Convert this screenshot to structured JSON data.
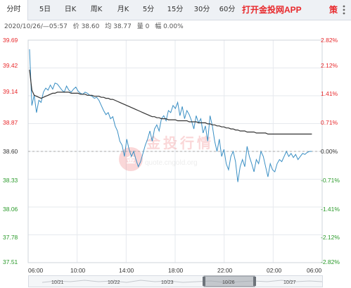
{
  "tabs": [
    {
      "label": "分时",
      "active": true
    },
    {
      "label": "5日"
    },
    {
      "label": "日K"
    },
    {
      "label": "周K"
    },
    {
      "label": "月K"
    },
    {
      "label": "5分"
    },
    {
      "label": "15分"
    },
    {
      "label": "30分"
    },
    {
      "label": "60分"
    }
  ],
  "app_link": "打开金投网APP",
  "strategy_label": "策",
  "info": {
    "datetime": "2020/10/26/—05:57",
    "price": "价 38.60",
    "avg": "均 38.77",
    "volume": "量 0",
    "change": "幅 0.00%"
  },
  "watermark": "quote.cngold.org",
  "colors": {
    "price_line": "#3a8fc4",
    "avg_line": "#333333",
    "up": "#e8282b",
    "down": "#2a9a2a",
    "grid": "#e6e9ee"
  },
  "chart_data": {
    "type": "line",
    "y_ticks_price": [
      "39.69",
      "39.42",
      "39.14",
      "38.87",
      "38.60",
      "38.33",
      "38.06",
      "37.78",
      "37.51"
    ],
    "y_ticks_pct": [
      "2.82%",
      "2.12%",
      "1.41%",
      "0.71%",
      "0.00%",
      "-0.71%",
      "-1.41%",
      "-2.12%",
      "-2.82%"
    ],
    "x_ticks": [
      "06:00",
      "10:00",
      "14:00",
      "18:00",
      "22:00",
      "02:00",
      "06:00"
    ],
    "ylim": [
      37.51,
      39.69
    ],
    "base_price": 38.6,
    "grid": true,
    "series": [
      {
        "values": [
          39.6,
          39.05,
          39.15,
          38.98,
          39.1,
          39.08,
          39.18,
          39.22,
          39.2,
          39.25,
          39.21,
          39.27,
          39.26,
          39.23,
          39.2,
          39.18,
          39.24,
          39.2,
          39.18,
          39.21,
          39.23,
          39.19,
          39.17,
          39.16,
          39.18,
          39.17,
          39.15,
          39.14,
          39.12,
          39.13,
          39.1,
          39.05,
          39.0,
          38.96,
          38.98,
          38.92,
          38.94,
          38.85,
          38.8,
          38.7,
          38.66,
          38.55,
          38.72,
          38.62,
          38.55,
          38.6,
          38.52,
          38.45,
          38.5,
          38.58,
          38.66,
          38.72,
          38.8,
          38.7,
          38.82,
          38.86,
          38.8,
          38.92,
          38.95,
          38.9,
          39.0,
          38.98,
          39.05,
          39.02,
          39.08,
          38.95,
          39.04,
          38.92,
          39.0,
          38.96,
          38.9,
          38.82,
          38.95,
          38.88,
          38.92,
          38.78,
          38.85,
          38.7,
          38.95,
          38.85,
          38.7,
          38.6,
          38.72,
          38.55,
          38.62,
          38.48,
          38.42,
          38.55,
          38.6,
          38.5,
          38.3,
          38.45,
          38.52,
          38.45,
          38.65,
          38.55,
          38.48,
          38.4,
          38.52,
          38.48,
          38.6,
          38.55,
          38.45,
          38.35,
          38.48,
          38.42,
          38.4,
          38.48,
          38.52,
          38.5,
          38.55,
          38.6,
          38.55,
          38.58,
          38.54,
          38.57,
          38.52,
          38.55,
          38.58,
          38.57,
          38.59,
          38.6,
          38.6
        ],
        "color": "#3a8fc4"
      },
      {
        "values": [
          39.4,
          39.2,
          39.15,
          39.14,
          39.13,
          39.12,
          39.13,
          39.14,
          39.15,
          39.16,
          39.17,
          39.17,
          39.18,
          39.18,
          39.18,
          39.18,
          39.18,
          39.18,
          39.17,
          39.17,
          39.17,
          39.17,
          39.16,
          39.16,
          39.16,
          39.15,
          39.15,
          39.15,
          39.14,
          39.14,
          39.14,
          39.13,
          39.13,
          39.12,
          39.12,
          39.11,
          39.11,
          39.1,
          39.09,
          39.08,
          39.07,
          39.06,
          39.05,
          39.04,
          39.03,
          39.02,
          39.01,
          39.0,
          38.99,
          38.98,
          38.97,
          38.96,
          38.95,
          38.94,
          38.94,
          38.93,
          38.93,
          38.92,
          38.92,
          38.92,
          38.91,
          38.91,
          38.91,
          38.91,
          38.9,
          38.9,
          38.9,
          38.9,
          38.9,
          38.89,
          38.89,
          38.89,
          38.89,
          38.88,
          38.88,
          38.88,
          38.88,
          38.87,
          38.87,
          38.86,
          38.86,
          38.85,
          38.85,
          38.84,
          38.84,
          38.83,
          38.83,
          38.82,
          38.82,
          38.81,
          38.81,
          38.8,
          38.8,
          38.8,
          38.79,
          38.79,
          38.79,
          38.79,
          38.78,
          38.78,
          38.78,
          38.78,
          38.78,
          38.77,
          38.77,
          38.77,
          38.77,
          38.77,
          38.77,
          38.77,
          38.77,
          38.77,
          38.77,
          38.77,
          38.77,
          38.77,
          38.77,
          38.77,
          38.77,
          38.77,
          38.77,
          38.77,
          38.77
        ],
        "color": "#333333"
      }
    ]
  },
  "navigator": {
    "labels": [
      "10/21",
      "10/22",
      "10/23",
      "10/26",
      "10/27"
    ]
  }
}
